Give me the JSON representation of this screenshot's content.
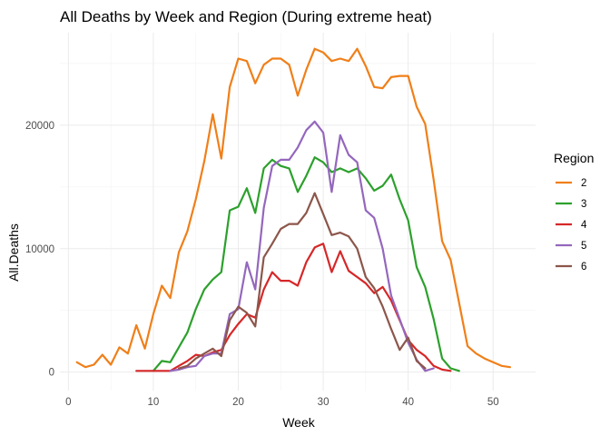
{
  "chart_data": {
    "type": "line",
    "title": "All Deaths by Week and Region (During extreme heat)",
    "xlabel": "Week",
    "ylabel": "All.Deaths",
    "xlim": [
      -1,
      55
    ],
    "ylim": [
      -1500,
      27500
    ],
    "x_ticks": [
      0,
      10,
      20,
      30,
      40,
      50
    ],
    "y_ticks": [
      0,
      10000,
      20000
    ],
    "grid": true,
    "legend": {
      "title": "Region",
      "placement": "right"
    },
    "series": [
      {
        "name": "2",
        "color": "#f07f19",
        "x": [
          1,
          2,
          3,
          4,
          5,
          6,
          7,
          8,
          9,
          10,
          11,
          12,
          13,
          14,
          15,
          16,
          17,
          18,
          19,
          20,
          21,
          22,
          23,
          24,
          25,
          26,
          27,
          28,
          29,
          30,
          31,
          32,
          33,
          34,
          35,
          36,
          37,
          38,
          39,
          40,
          41,
          42,
          43,
          44,
          45,
          46,
          47,
          48,
          49,
          50,
          51,
          52
        ],
        "values": [
          800,
          400,
          600,
          1400,
          600,
          2000,
          1500,
          3800,
          1900,
          4700,
          7000,
          6000,
          9700,
          11400,
          14000,
          17100,
          20900,
          17300,
          23100,
          25400,
          25200,
          23400,
          24900,
          25400,
          25400,
          24900,
          22400,
          24500,
          26200,
          25900,
          25200,
          25400,
          25200,
          26200,
          24800,
          23100,
          23000,
          23900,
          24000,
          24000,
          21500,
          20100,
          15600,
          10600,
          9100,
          5600,
          2100,
          1500,
          1100,
          800,
          500,
          400
        ]
      },
      {
        "name": "3",
        "color": "#2ca02c",
        "x": [
          10,
          11,
          12,
          13,
          14,
          15,
          16,
          17,
          18,
          19,
          20,
          21,
          22,
          23,
          24,
          25,
          26,
          27,
          28,
          29,
          30,
          31,
          32,
          33,
          34,
          35,
          36,
          37,
          38,
          39,
          40,
          41,
          42,
          43,
          44,
          45,
          46
        ],
        "values": [
          100,
          900,
          800,
          2000,
          3200,
          5100,
          6700,
          7500,
          8100,
          13100,
          13400,
          14900,
          12900,
          16500,
          17200,
          16700,
          16500,
          14600,
          15900,
          17400,
          17000,
          16200,
          16500,
          16200,
          16500,
          15700,
          14700,
          15100,
          16000,
          14000,
          12300,
          8500,
          6900,
          4300,
          1100,
          300,
          100
        ]
      },
      {
        "name": "4",
        "color": "#d62728",
        "x": [
          8,
          9,
          10,
          11,
          12,
          13,
          14,
          15,
          16,
          17,
          18,
          19,
          20,
          21,
          22,
          23,
          24,
          25,
          26,
          27,
          28,
          29,
          30,
          31,
          32,
          33,
          34,
          35,
          36,
          37,
          38,
          39,
          40,
          41,
          42,
          43,
          44,
          45
        ],
        "values": [
          100,
          100,
          100,
          100,
          100,
          500,
          900,
          1400,
          1300,
          1600,
          1800,
          3000,
          3900,
          4700,
          4400,
          6700,
          8100,
          7400,
          7400,
          7000,
          8900,
          10100,
          10400,
          8100,
          9800,
          8200,
          7700,
          7200,
          6400,
          6900,
          5800,
          4200,
          2600,
          1800,
          1300,
          500,
          200,
          100
        ]
      },
      {
        "name": "5",
        "color": "#9467bd",
        "x": [
          12,
          13,
          14,
          15,
          16,
          17,
          18,
          19,
          20,
          21,
          22,
          23,
          24,
          25,
          26,
          27,
          28,
          29,
          30,
          31,
          32,
          33,
          34,
          35,
          36,
          37,
          38,
          39,
          40,
          41,
          42,
          43
        ],
        "values": [
          100,
          200,
          400,
          500,
          1300,
          1500,
          1500,
          4700,
          5100,
          8900,
          6700,
          13300,
          16700,
          17200,
          17200,
          18200,
          19600,
          20300,
          19400,
          14600,
          19200,
          17600,
          17000,
          13100,
          12500,
          10000,
          6200,
          4300,
          2400,
          1000,
          100,
          300
        ]
      },
      {
        "name": "6",
        "color": "#8c564b",
        "x": [
          13,
          14,
          15,
          16,
          17,
          18,
          19,
          20,
          21,
          22,
          23,
          24,
          25,
          26,
          27,
          28,
          29,
          30,
          31,
          32,
          33,
          34,
          35,
          36,
          37,
          38,
          39,
          40,
          41,
          42
        ],
        "values": [
          300,
          500,
          1100,
          1500,
          1900,
          1300,
          4200,
          5300,
          4800,
          3700,
          9300,
          10400,
          11600,
          12000,
          12000,
          12900,
          14500,
          12800,
          11100,
          11300,
          11000,
          10000,
          7700,
          6800,
          5300,
          3500,
          1800,
          2800,
          900,
          300
        ]
      }
    ]
  }
}
